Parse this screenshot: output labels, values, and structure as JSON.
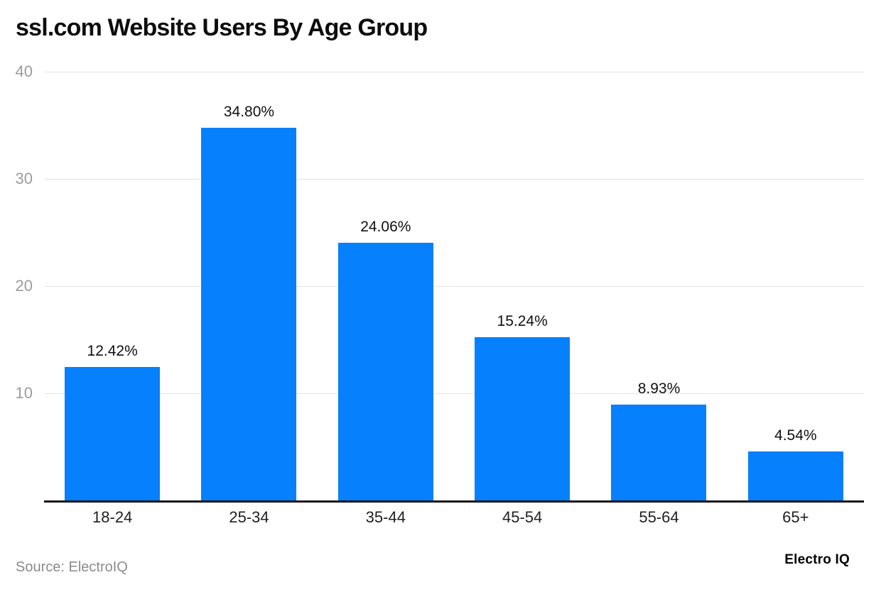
{
  "header": {
    "title": "ssl.com Website Users By Age Group"
  },
  "footer": {
    "source_label": "Source: ElectroIQ",
    "brand": "Electro IQ"
  },
  "colors": {
    "bar": "#0680fc",
    "gridline": "#e4e4e4",
    "axis_line": "#161616",
    "ytick_text": "#9c9c9c",
    "xlabel_text": "#1f1f1f",
    "value_text": "#101010",
    "source_text": "#8b8b8b"
  },
  "chart_data": {
    "type": "bar",
    "title": "ssl.com Website Users By Age Group",
    "categories": [
      "18-24",
      "25-34",
      "35-44",
      "45-54",
      "55-64",
      "65+"
    ],
    "values": [
      12.42,
      34.8,
      24.06,
      15.24,
      8.93,
      4.54
    ],
    "value_labels": [
      "12.42%",
      "34.80%",
      "24.06%",
      "15.24%",
      "8.93%",
      "4.54%"
    ],
    "xlabel": "",
    "ylabel": "",
    "ylim": [
      0,
      40
    ],
    "yticks": [
      10,
      20,
      30,
      40
    ],
    "grid": true,
    "legend": false,
    "bar_color": "#0680fc"
  }
}
